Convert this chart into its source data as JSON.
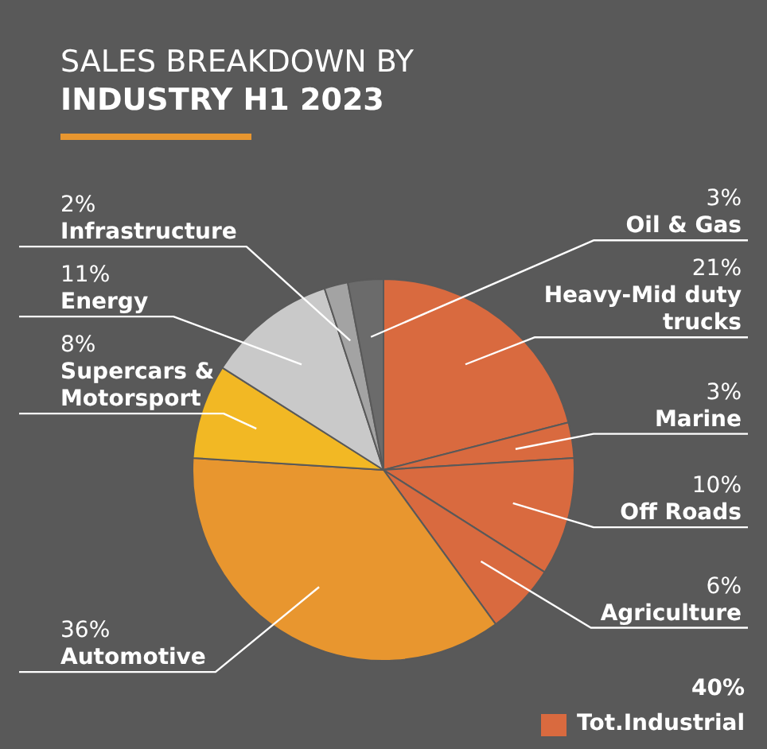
{
  "chart_data": {
    "type": "pie",
    "title": "SALES BREAKDOWN BY",
    "subtitle": "INDUSTRY H1 2023",
    "categories": [
      "Heavy-Mid duty trucks",
      "Marine",
      "Off Roads",
      "Agriculture",
      "Automotive",
      "Supercars & Motorsport",
      "Energy",
      "Infrastructure",
      "Oil & Gas"
    ],
    "values": [
      21,
      3,
      10,
      6,
      36,
      8,
      11,
      2,
      3
    ],
    "colors": [
      "#d96a3f",
      "#d96a3f",
      "#d96a3f",
      "#d96a3f",
      "#e8962f",
      "#f2b824",
      "#c9c9c9",
      "#a3a3a3",
      "#6b6b6b"
    ],
    "value_labels": [
      "21%",
      "3%",
      "10%",
      "6%",
      "36%",
      "8%",
      "11%",
      "2%",
      "3%"
    ],
    "annotations": [
      "40%",
      "Tot.Industrial"
    ]
  }
}
